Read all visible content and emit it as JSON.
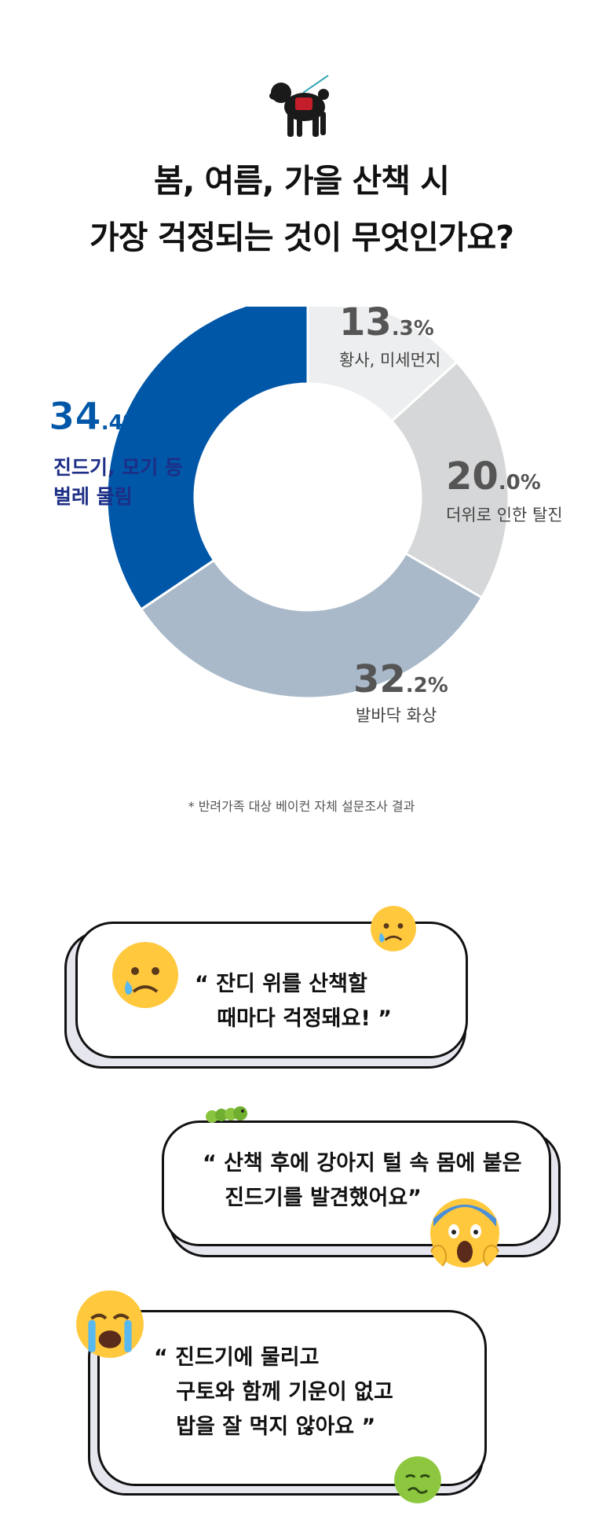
{
  "title": {
    "line1": "봄, 여름, 가을 산책 시",
    "line2": "가장 걱정되는 것이 무엇인가요?"
  },
  "chart_data": {
    "type": "pie",
    "donut": true,
    "categories": [
      "진드기, 모기 등 벌레 물림",
      "황사, 미세먼지",
      "더위로 인한 탈진",
      "발바닥 화상"
    ],
    "values": [
      34.4,
      13.3,
      20.0,
      32.2
    ],
    "colors": [
      "#0057A8",
      "#EDEEEF",
      "#D6D7D8",
      "#A9B9C9"
    ],
    "labels": [
      {
        "int": "34",
        "dec": ".4%",
        "line1": "진드기, 모기 등",
        "line2": "벌레 물림"
      },
      {
        "int": "13",
        "dec": ".3%",
        "line1": "황사, 미세먼지",
        "line2": ""
      },
      {
        "int": "20",
        "dec": ".0%",
        "line1": "더위로 인한 탈진",
        "line2": ""
      },
      {
        "int": "32",
        "dec": ".2%",
        "line1": "발바닥 화상",
        "line2": ""
      }
    ]
  },
  "note": "* 반려가족 대상 베이컨 자체 설문조사 결과",
  "quotes": [
    {
      "line1": "“ 잔디 위를 산책할",
      "line2": "   때마다 걱정돼요! ”",
      "line3": ""
    },
    {
      "line1": "“ 산책 후에 강아지 털 속 몸에 붙은",
      "line2": "   진드기를 발견했어요”",
      "line3": ""
    },
    {
      "line1": "“ 진드기에 물리고",
      "line2": "   구토와 함께 기운이 없고",
      "line3": "   밥을 잘 먹지 않아요 ”"
    }
  ],
  "icons": [
    "dog-icon",
    "sad-tear-emoji-icon",
    "caterpillar-icon",
    "screaming-emoji-icon",
    "crying-emoji-icon",
    "nauseated-emoji-icon"
  ],
  "colors": {
    "accent_blue": "#0057A8",
    "label_navy": "#1D2E86"
  }
}
